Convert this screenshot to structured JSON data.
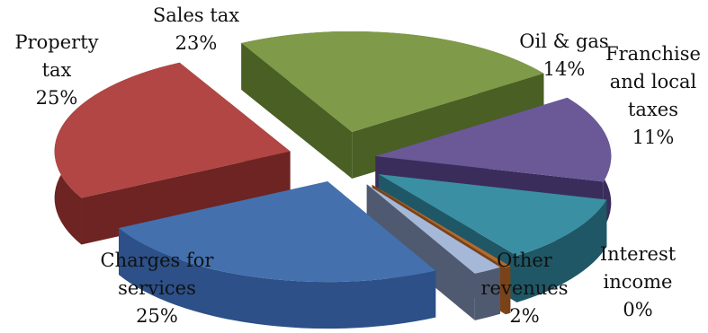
{
  "chart_data": {
    "type": "pie",
    "style": "3d-exploded",
    "legend": "none",
    "slices": [
      {
        "name": "Sales tax",
        "line1": "Sales tax",
        "line2": "",
        "pct_label": "23%",
        "value": 23,
        "color": "#7f9a48",
        "side": "#4a5f24"
      },
      {
        "name": "Oil & gas",
        "line1": "Oil & gas",
        "line2": "",
        "pct_label": "14%",
        "value": 14,
        "color": "#6a5996",
        "side": "#3a2d5c"
      },
      {
        "name": "Franchise and local taxes",
        "line1": "Franchise",
        "line2": "and local",
        "line3": "taxes",
        "pct_label": "11%",
        "value": 11,
        "color": "#3b8fa3",
        "side": "#1f5766"
      },
      {
        "name": "Interest income",
        "line1": "Interest",
        "line2": "income",
        "pct_label": "0%",
        "value": 0.4,
        "color": "#b26a2e",
        "side": "#7a4218"
      },
      {
        "name": "Other revenues",
        "line1": "Other",
        "line2": "revenues",
        "pct_label": "2%",
        "value": 2,
        "color": "#a5b8d8",
        "side": "#4f5a70"
      },
      {
        "name": "Charges for services",
        "line1": "Charges for",
        "line2": "services",
        "pct_label": "25%",
        "value": 25,
        "color": "#4471ae",
        "side": "#2c5087"
      },
      {
        "name": "Property tax",
        "line1": "Property",
        "line2": "tax",
        "pct_label": "25%",
        "value": 25,
        "color": "#b14644",
        "side": "#6e2422"
      }
    ]
  }
}
